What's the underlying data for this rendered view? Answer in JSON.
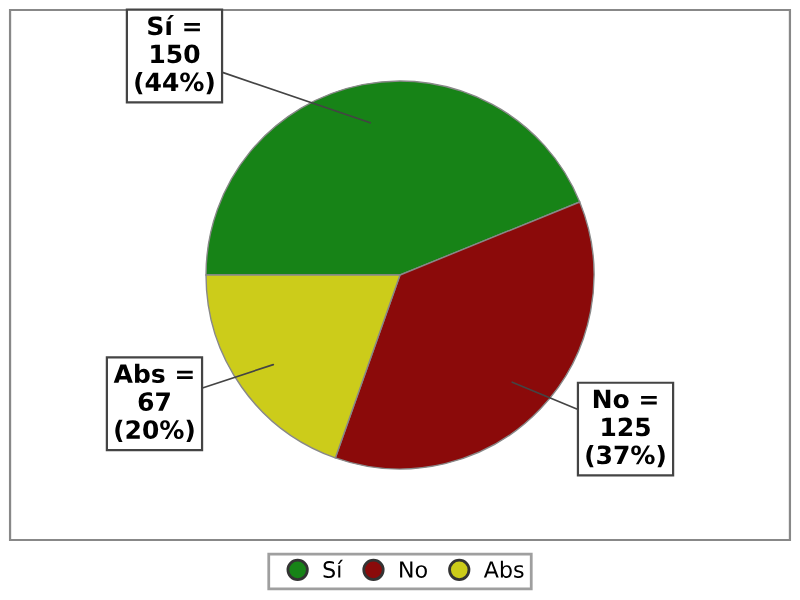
{
  "chart_data": {
    "type": "pie",
    "categories": [
      "Sí",
      "No",
      "Abs"
    ],
    "values": [
      150,
      125,
      67
    ],
    "colors": [
      "#178317",
      "#8b0a0a",
      "#cccc1a"
    ],
    "value_labels": [
      "Sí =\n150\n(44%)",
      "No =\n125\n(37%)",
      "Abs =\n67\n(20%)"
    ],
    "legend": "bottom"
  }
}
